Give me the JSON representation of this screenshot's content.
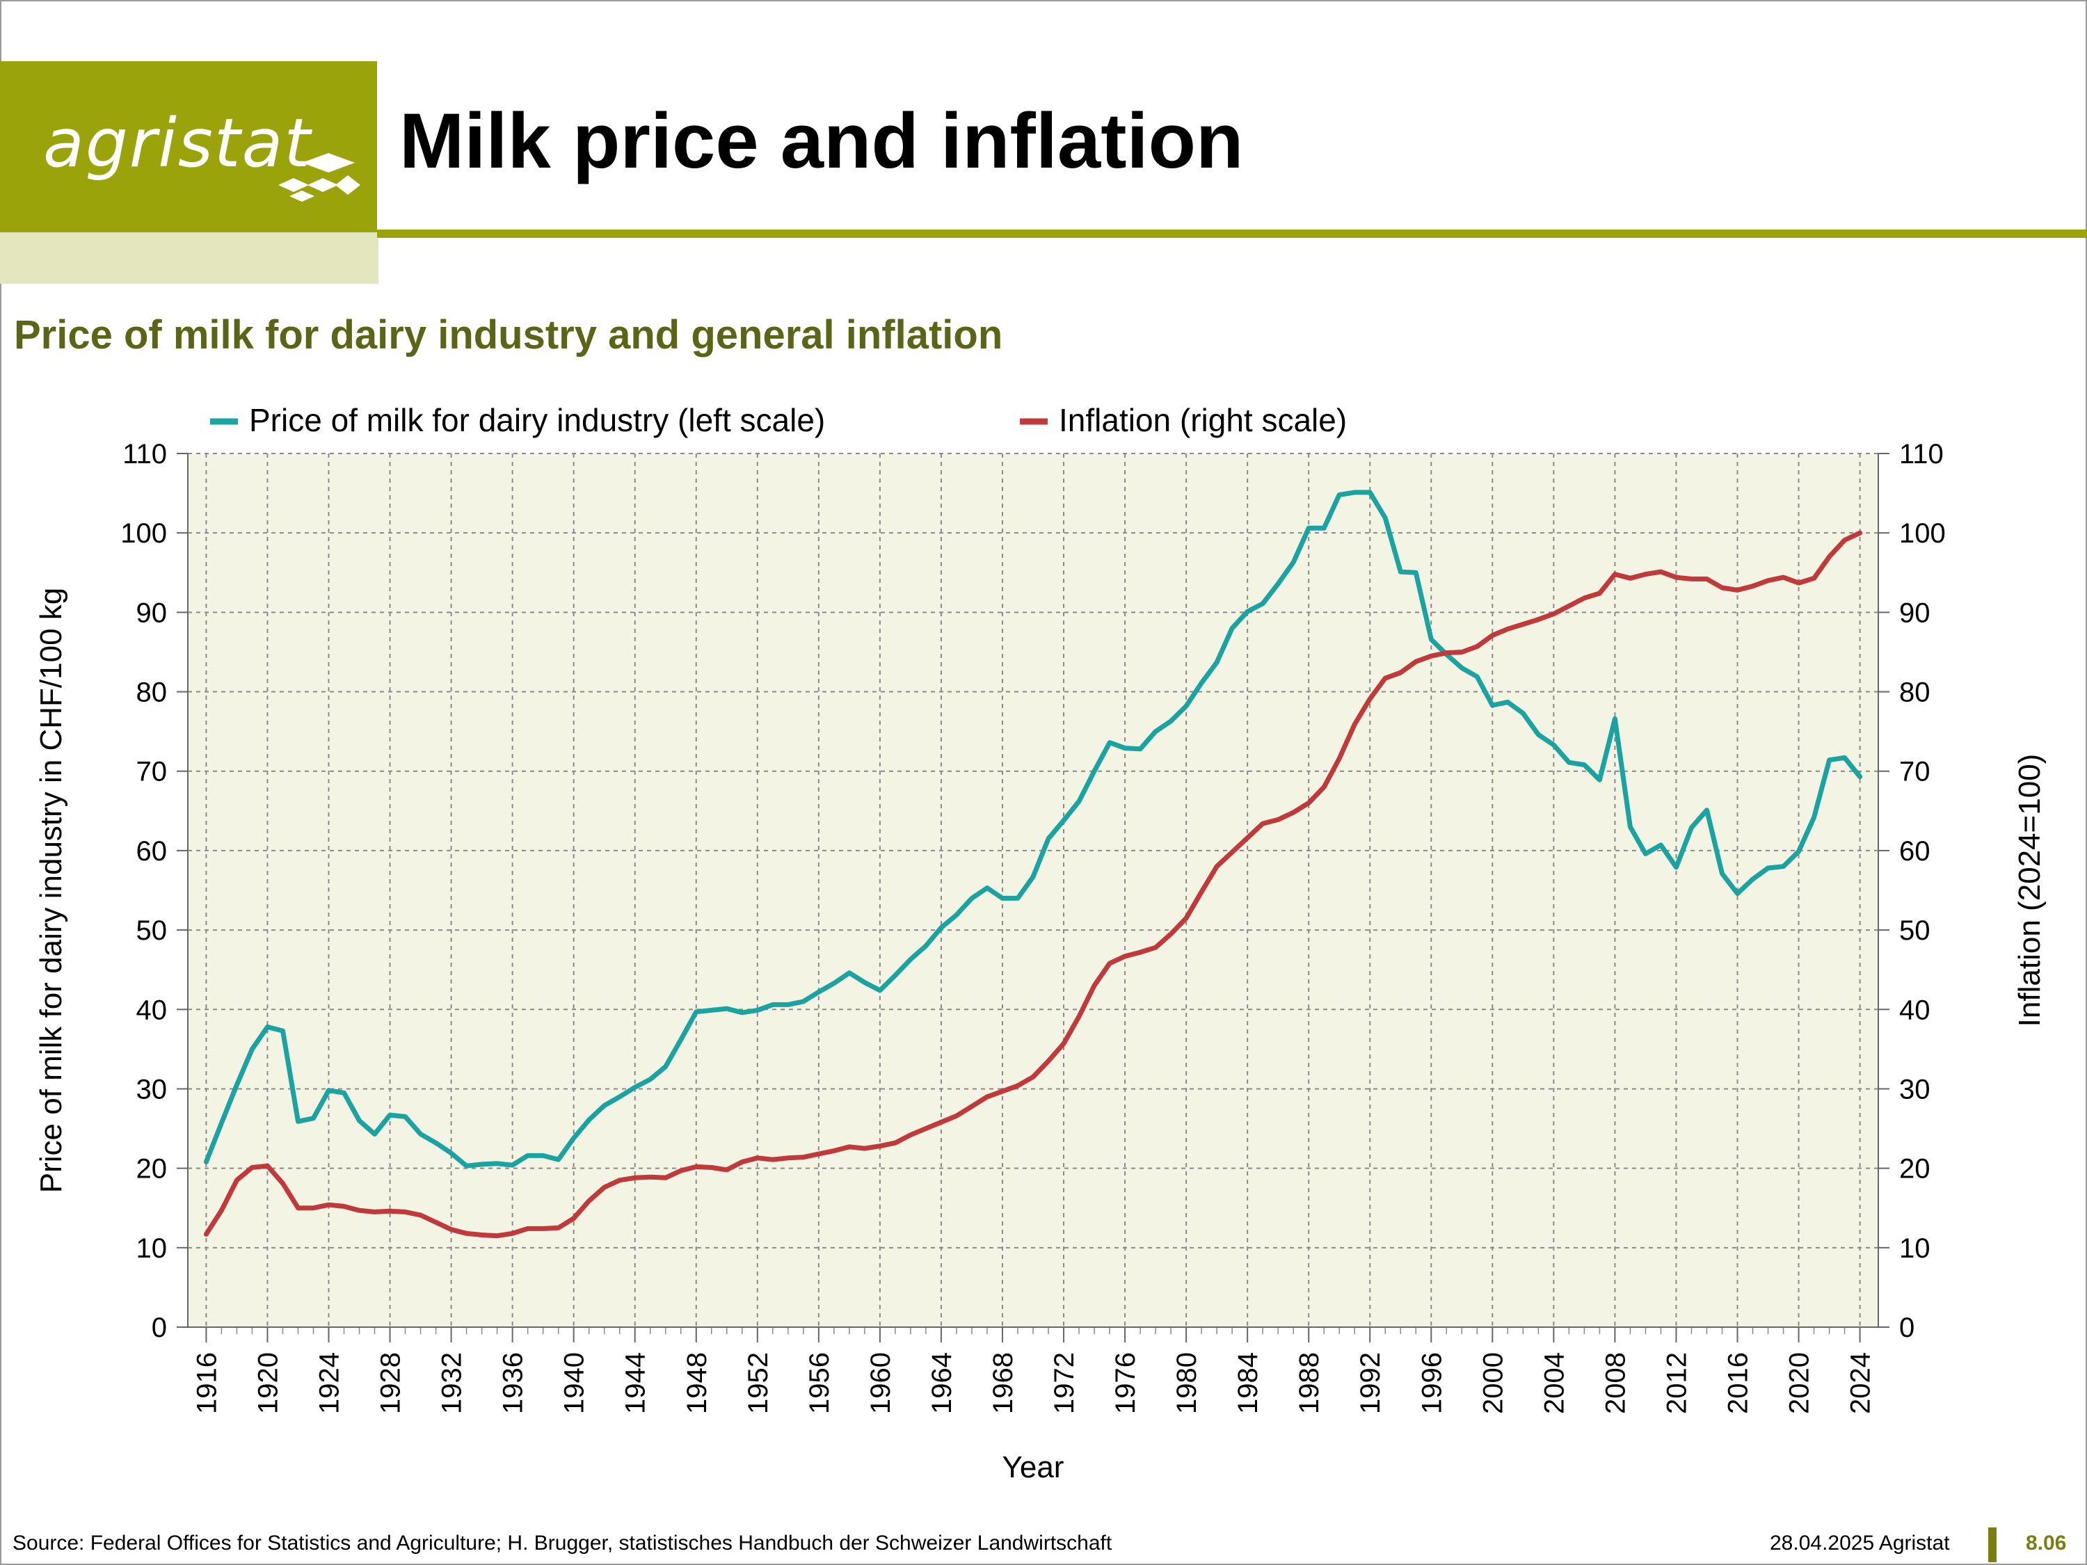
{
  "header": {
    "logo_text": "agristat",
    "title": "Milk price and inflation",
    "subtitle": "Price of milk for dairy industry and general inflation",
    "brand_color": "#9aa40a"
  },
  "footer": {
    "source": "Source: Federal Offices for Statistics and Agriculture; H. Brugger, statistisches Handbuch der Schweizer Landwirtschaft",
    "date": "28.04.2025 Agristat",
    "page_number": "8.06"
  },
  "chart_data": {
    "type": "line",
    "xlabel": "Year",
    "ylabel": "Price of milk for dairy industry in CHF/100 kg",
    "y2label": "Inflation (2024=100)",
    "xlim": [
      1916,
      2024
    ],
    "ylim": [
      0,
      110
    ],
    "y2lim": [
      0,
      110
    ],
    "yticks": [
      0,
      10,
      20,
      30,
      40,
      50,
      60,
      70,
      80,
      90,
      100,
      110
    ],
    "xticks": [
      1916,
      1920,
      1924,
      1928,
      1932,
      1936,
      1940,
      1944,
      1948,
      1952,
      1956,
      1960,
      1964,
      1968,
      1972,
      1976,
      1980,
      1984,
      1988,
      1992,
      1996,
      2000,
      2004,
      2008,
      2012,
      2016,
      2020,
      2024
    ],
    "grid": true,
    "legend_position": "top",
    "series": [
      {
        "name": "Price of milk for dairy industry (left scale)",
        "axis": "left",
        "color": "#1aa3a0",
        "x": [
          1916,
          1917,
          1918,
          1919,
          1920,
          1921,
          1922,
          1923,
          1924,
          1925,
          1926,
          1927,
          1928,
          1929,
          1930,
          1931,
          1932,
          1933,
          1934,
          1935,
          1936,
          1937,
          1938,
          1939,
          1940,
          1941,
          1942,
          1943,
          1944,
          1945,
          1946,
          1947,
          1948,
          1949,
          1950,
          1951,
          1952,
          1953,
          1954,
          1955,
          1956,
          1957,
          1958,
          1959,
          1960,
          1961,
          1962,
          1963,
          1964,
          1965,
          1966,
          1967,
          1968,
          1969,
          1970,
          1971,
          1972,
          1973,
          1974,
          1975,
          1976,
          1977,
          1978,
          1979,
          1980,
          1981,
          1982,
          1983,
          1984,
          1985,
          1986,
          1987,
          1988,
          1989,
          1990,
          1991,
          1992,
          1993,
          1994,
          1995,
          1996,
          1997,
          1998,
          1999,
          2000,
          2001,
          2002,
          2003,
          2004,
          2005,
          2006,
          2007,
          2008,
          2009,
          2010,
          2011,
          2012,
          2013,
          2014,
          2015,
          2016,
          2017,
          2018,
          2019,
          2020,
          2021,
          2022,
          2023,
          2024
        ],
        "values": [
          20.8,
          25.7,
          30.5,
          35.0,
          37.8,
          37.3,
          25.9,
          26.3,
          29.8,
          29.5,
          26.0,
          24.3,
          26.7,
          26.5,
          24.3,
          23.2,
          21.9,
          20.3,
          20.5,
          20.6,
          20.4,
          21.6,
          21.6,
          21.1,
          23.8,
          26.1,
          27.9,
          29.0,
          30.2,
          31.2,
          32.8,
          36.2,
          39.7,
          39.9,
          40.1,
          39.6,
          39.9,
          40.6,
          40.6,
          41.0,
          42.2,
          43.3,
          44.6,
          43.4,
          42.4,
          44.3,
          46.3,
          48.0,
          50.3,
          51.9,
          54.0,
          55.3,
          54.0,
          54.0,
          56.7,
          61.5,
          63.8,
          66.2,
          70.0,
          73.6,
          72.9,
          72.8,
          75.0,
          76.3,
          78.2,
          81.1,
          83.7,
          88.0,
          90.1,
          91.1,
          93.6,
          96.3,
          100.6,
          100.6,
          104.8,
          105.1,
          105.1,
          101.9,
          95.1,
          95.0,
          86.6,
          84.7,
          83.0,
          81.9,
          78.3,
          78.7,
          77.3,
          74.6,
          73.3,
          71.1,
          70.8,
          68.9,
          76.6,
          63.0,
          59.6,
          60.7,
          57.9,
          62.9,
          65.1,
          57.1,
          54.6,
          56.4,
          57.8,
          58.0,
          59.9,
          64.2,
          71.4,
          71.7,
          69.3
        ]
      },
      {
        "name": "Inflation (right scale)",
        "axis": "right",
        "color": "#c0393b",
        "x": [
          1916,
          1917,
          1918,
          1919,
          1920,
          1921,
          1922,
          1923,
          1924,
          1925,
          1926,
          1927,
          1928,
          1929,
          1930,
          1931,
          1932,
          1933,
          1934,
          1935,
          1936,
          1937,
          1938,
          1939,
          1940,
          1941,
          1942,
          1943,
          1944,
          1945,
          1946,
          1947,
          1948,
          1949,
          1950,
          1951,
          1952,
          1953,
          1954,
          1955,
          1956,
          1957,
          1958,
          1959,
          1960,
          1961,
          1962,
          1963,
          1964,
          1965,
          1966,
          1967,
          1968,
          1969,
          1970,
          1971,
          1972,
          1973,
          1974,
          1975,
          1976,
          1977,
          1978,
          1979,
          1980,
          1981,
          1982,
          1983,
          1984,
          1985,
          1986,
          1987,
          1988,
          1989,
          1990,
          1991,
          1992,
          1993,
          1994,
          1995,
          1996,
          1997,
          1998,
          1999,
          2000,
          2001,
          2002,
          2003,
          2004,
          2005,
          2006,
          2007,
          2008,
          2009,
          2010,
          2011,
          2012,
          2013,
          2014,
          2015,
          2016,
          2017,
          2018,
          2019,
          2020,
          2021,
          2022,
          2023,
          2024
        ],
        "values": [
          11.7,
          14.7,
          18.5,
          20.1,
          20.3,
          18.1,
          15.0,
          15.0,
          15.4,
          15.2,
          14.7,
          14.5,
          14.6,
          14.5,
          14.1,
          13.2,
          12.3,
          11.8,
          11.6,
          11.5,
          11.8,
          12.4,
          12.4,
          12.5,
          13.7,
          15.9,
          17.6,
          18.5,
          18.8,
          18.9,
          18.8,
          19.7,
          20.2,
          20.1,
          19.8,
          20.8,
          21.3,
          21.1,
          21.3,
          21.4,
          21.8,
          22.2,
          22.7,
          22.5,
          22.8,
          23.2,
          24.2,
          25.0,
          25.8,
          26.6,
          27.8,
          29.0,
          29.7,
          30.4,
          31.5,
          33.5,
          35.7,
          39.1,
          43.0,
          45.8,
          46.7,
          47.2,
          47.8,
          49.5,
          51.5,
          54.8,
          58.0,
          59.8,
          61.6,
          63.4,
          63.9,
          64.8,
          66.0,
          68.0,
          71.6,
          75.9,
          79.1,
          81.7,
          82.4,
          83.8,
          84.5,
          84.9,
          85.0,
          85.7,
          87.1,
          87.9,
          88.5,
          89.1,
          89.8,
          90.8,
          91.8,
          92.4,
          94.8,
          94.3,
          94.8,
          95.1,
          94.4,
          94.2,
          94.2,
          93.1,
          92.8,
          93.3,
          94.0,
          94.4,
          93.7,
          94.3,
          97.0,
          99.1,
          100.0
        ]
      }
    ]
  }
}
